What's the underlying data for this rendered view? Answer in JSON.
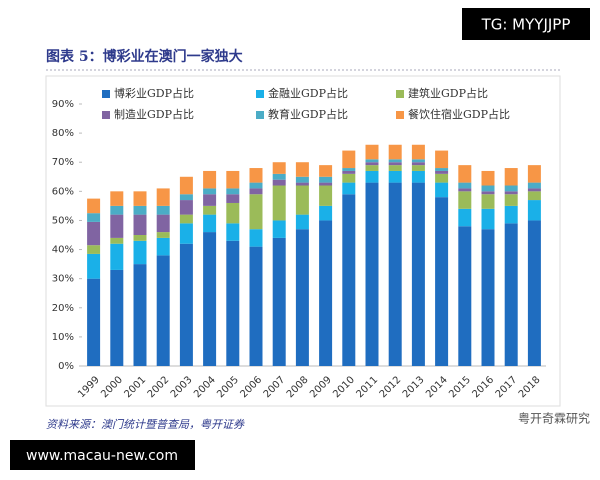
{
  "header": {
    "title": "图表 5：博彩业在澳门一家独大",
    "badge": "TG: MYYJJPP"
  },
  "footer": {
    "source": "资料来源：澳门统计暨普查局，粤开证券",
    "watermark": "粤开奇霖研究",
    "site": "www.macau-new.com"
  },
  "chart_data": {
    "type": "stacked_bar",
    "categories": [
      "1999",
      "2000",
      "2001",
      "2002",
      "2003",
      "2004",
      "2005",
      "2006",
      "2007",
      "2008",
      "2009",
      "2010",
      "2011",
      "2012",
      "2013",
      "2014",
      "2015",
      "2016",
      "2017",
      "2018"
    ],
    "series": [
      {
        "name": "博彩业GDP占比",
        "color": "#1f6dc0",
        "values": [
          30,
          33,
          35,
          38,
          42,
          46,
          43,
          41,
          44,
          47,
          50,
          59,
          63,
          63,
          63,
          58,
          48,
          47,
          49,
          50
        ]
      },
      {
        "name": "金融业GDP占比",
        "color": "#1ab0e8",
        "values": [
          8.5,
          9,
          8,
          6,
          7,
          6,
          6,
          6,
          6,
          5,
          5,
          4,
          4,
          4,
          4,
          5,
          6,
          7,
          6,
          7
        ]
      },
      {
        "name": "建筑业GDP占比",
        "color": "#9bbb59",
        "values": [
          3,
          2,
          2,
          2,
          3,
          3,
          7,
          12,
          12,
          10,
          7,
          3,
          2,
          2,
          2,
          3,
          6,
          5,
          4,
          3
        ]
      },
      {
        "name": "制造业GDP占比",
        "color": "#8064a2",
        "values": [
          8,
          8,
          7,
          6,
          5,
          4,
          3,
          2,
          2,
          1,
          1,
          1,
          1,
          1,
          1,
          1,
          1,
          1,
          1,
          1
        ]
      },
      {
        "name": "教育业GDP占比",
        "color": "#4bacc6",
        "values": [
          3,
          3,
          3,
          3,
          2,
          2,
          2,
          2,
          2,
          2,
          2,
          1,
          1,
          1,
          1,
          1,
          2,
          2,
          2,
          2
        ]
      },
      {
        "name": "餐饮住宿业GDP占比",
        "color": "#f79646",
        "values": [
          5,
          5,
          5,
          6,
          6,
          6,
          6,
          5,
          4,
          5,
          4,
          6,
          5,
          5,
          5,
          6,
          6,
          5,
          6,
          6
        ]
      }
    ],
    "ylim": [
      0,
      90
    ],
    "yticks": [
      {
        "value": 0,
        "label": "0%"
      },
      {
        "value": 10,
        "label": "10%"
      },
      {
        "value": 20,
        "label": "20%"
      },
      {
        "value": 30,
        "label": "30%"
      },
      {
        "value": 40,
        "label": "40%"
      },
      {
        "value": 50,
        "label": "50%"
      },
      {
        "value": 60,
        "label": "60%"
      },
      {
        "value": 70,
        "label": "70%"
      },
      {
        "value": 80,
        "label": "80%"
      },
      {
        "value": 90,
        "label": "90%"
      }
    ],
    "legend": "top"
  }
}
